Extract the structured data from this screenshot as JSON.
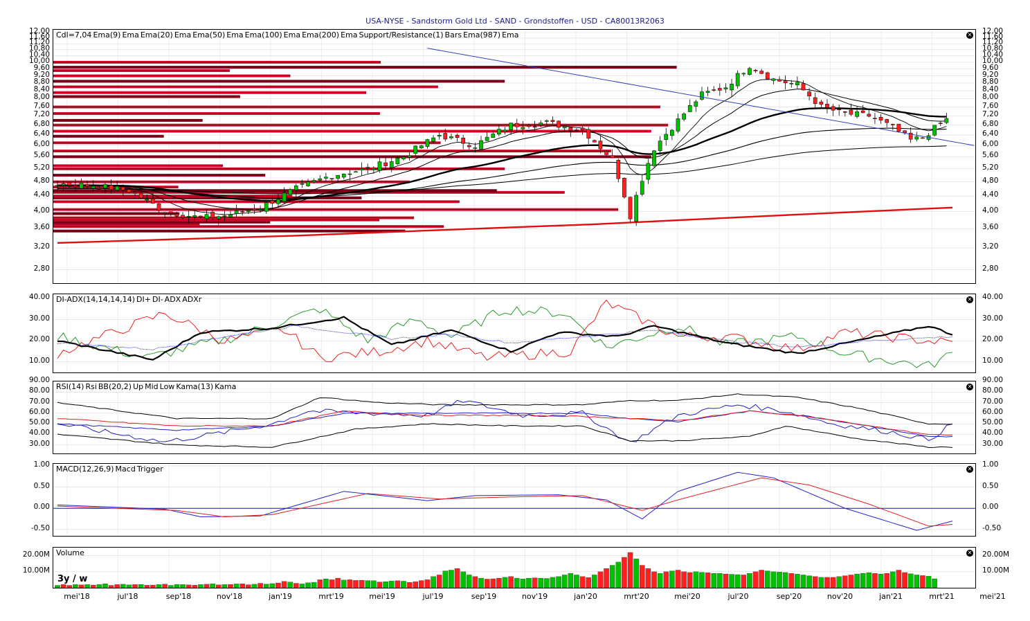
{
  "title": "USA-NYSE - Sandstorm Gold Ltd - SAND - Grondstoffen - USD - CA80013R2063",
  "colors": {
    "up": "#00c000",
    "down": "#ff2020",
    "dark_red": "#7a0018",
    "res_red": "#dd1030",
    "ema": "#000000",
    "ema987": "#e01010",
    "trend": "#3040c0",
    "dip": "#2a9a2a",
    "dim": "#ee2020",
    "adx": "#000000",
    "adxr": "#3030e0",
    "rsi": "#2020c0",
    "kama": "#e02020",
    "macd": "#2020d0",
    "trigger": "#e02020"
  },
  "x_labels": [
    "mei'18",
    "jul'18",
    "sep'18",
    "nov'18",
    "jan'19",
    "mrt'19",
    "mei'19",
    "jul'19",
    "sep'19",
    "nov'19",
    "jan'20",
    "mrt'20",
    "mei'20",
    "jul'20",
    "sep'20",
    "nov'20",
    "jan'21",
    "mrt'21",
    "mei'21"
  ],
  "panels": {
    "price": {
      "legend": [
        "Cdl=7,04",
        "Ema(9)",
        "Ema",
        "Ema(20)",
        "Ema",
        "Ema(50)",
        "Ema",
        "Ema(100)",
        "Ema",
        "Ema(200)",
        "Ema",
        "Support/Resistance(1)",
        "Bars",
        "Ema(987)",
        "Ema"
      ],
      "y_ticks": [
        "12,00",
        "11,60",
        "11,20",
        "10,80",
        "10,40",
        "10,00",
        "9,60",
        "9,20",
        "8,80",
        "8,40",
        "8,00",
        "7,60",
        "7,20",
        "6,80",
        "6,40",
        "6,00",
        "5,60",
        "5,20",
        "4,80",
        "4,40",
        "4,00",
        "3,60",
        "3,20",
        "2,80"
      ]
    },
    "adx": {
      "legend": [
        "DI-ADX(14,14,14,14)",
        "DI+",
        "DI-",
        "ADX",
        "ADXr"
      ],
      "y_ticks": [
        "40.00",
        "30.00",
        "20.00",
        "10.00"
      ]
    },
    "rsi": {
      "legend": [
        "RSI(14)",
        "Rsi",
        "BB(20,2)",
        "Up",
        "Mid",
        "Low",
        "Kama(13)",
        "Kama"
      ],
      "y_ticks": [
        "90.00",
        "80.00",
        "70.00",
        "60.00",
        "50.00",
        "40.00",
        "30.00"
      ]
    },
    "macd": {
      "legend": [
        "MACD(12,26,9)",
        "Macd",
        "Trigger"
      ],
      "y_ticks": [
        "1.00",
        "0.50",
        "0.00",
        "-0.50"
      ]
    },
    "volume": {
      "legend": [
        "Volume"
      ],
      "badge": "3y / w",
      "y_ticks": [
        "20.00M",
        "10.00M"
      ]
    }
  },
  "chart_data": [
    {
      "type": "candlestick",
      "title": "USA-NYSE - Sandstorm Gold Ltd - SAND - Grondstoffen - USD - CA80013R2063",
      "x": "weekly, Apr 2018 - Mar 2021",
      "ylim": [
        2.6,
        12.0
      ],
      "y_scale": "log",
      "close_points": [
        [
          0,
          4.75
        ],
        [
          6,
          4.7
        ],
        [
          12,
          4.55
        ],
        [
          18,
          4.0
        ],
        [
          24,
          3.85
        ],
        [
          28,
          3.9
        ],
        [
          34,
          4.1
        ],
        [
          40,
          4.6
        ],
        [
          46,
          5.0
        ],
        [
          52,
          5.2
        ],
        [
          58,
          5.6
        ],
        [
          64,
          6.4
        ],
        [
          70,
          6.0
        ],
        [
          76,
          6.8
        ],
        [
          82,
          6.9
        ],
        [
          88,
          6.6
        ],
        [
          93,
          5.5
        ],
        [
          96,
          3.9
        ],
        [
          100,
          5.9
        ],
        [
          104,
          7.0
        ],
        [
          108,
          8.2
        ],
        [
          112,
          8.6
        ],
        [
          116,
          9.8
        ],
        [
          120,
          9.0
        ],
        [
          124,
          8.7
        ],
        [
          128,
          7.6
        ],
        [
          132,
          7.3
        ],
        [
          136,
          7.2
        ],
        [
          140,
          6.7
        ],
        [
          143,
          6.2
        ],
        [
          145,
          6.3
        ],
        [
          149,
          7.04
        ]
      ],
      "resistance_levels": [
        3.55,
        3.65,
        3.7,
        3.75,
        3.8,
        3.85,
        3.95,
        4.05,
        4.25,
        4.35,
        4.4,
        4.5,
        4.55,
        4.65,
        4.8,
        5.0,
        5.2,
        5.3,
        5.6,
        5.8,
        6.1,
        6.35,
        6.55,
        6.8,
        7.0,
        7.3,
        7.6,
        8.1,
        8.3,
        8.6,
        8.9,
        9.2,
        9.5,
        9.7,
        10.0
      ],
      "trendline": [
        [
          10.9,
          62
        ],
        [
          6.0,
          149
        ]
      ],
      "ema987": [
        [
          3.3,
          0
        ],
        [
          3.45,
          40
        ],
        [
          3.7,
          90
        ],
        [
          4.1,
          150
        ]
      ]
    },
    {
      "type": "line",
      "title": "DI-ADX(14,14,14,14)",
      "ylim": [
        5,
        42
      ],
      "series": [
        {
          "name": "DI+",
          "anchors": [
            [
              0,
              22
            ],
            [
              15,
              12
            ],
            [
              30,
              22
            ],
            [
              44,
              35
            ],
            [
              52,
              20
            ],
            [
              60,
              30
            ],
            [
              66,
              22
            ],
            [
              75,
              35
            ],
            [
              85,
              33
            ],
            [
              92,
              17
            ],
            [
              104,
              27
            ],
            [
              112,
              18
            ],
            [
              124,
              22
            ],
            [
              132,
              14
            ],
            [
              146,
              8
            ],
            [
              150,
              14
            ]
          ]
        },
        {
          "name": "DI-",
          "anchors": [
            [
              0,
              14
            ],
            [
              18,
              33
            ],
            [
              28,
              20
            ],
            [
              38,
              25
            ],
            [
              44,
              12
            ],
            [
              54,
              15
            ],
            [
              62,
              20
            ],
            [
              72,
              12
            ],
            [
              86,
              15
            ],
            [
              92,
              38
            ],
            [
              104,
              22
            ],
            [
              112,
              22
            ],
            [
              124,
              16
            ],
            [
              132,
              24
            ],
            [
              146,
              20
            ],
            [
              150,
              19
            ]
          ]
        },
        {
          "name": "ADX",
          "anchors": [
            [
              0,
              20
            ],
            [
              16,
              11
            ],
            [
              24,
              24
            ],
            [
              36,
              26
            ],
            [
              48,
              31
            ],
            [
              56,
              18
            ],
            [
              66,
              25
            ],
            [
              76,
              15
            ],
            [
              84,
              24
            ],
            [
              94,
              22
            ],
            [
              100,
              27
            ],
            [
              112,
              19
            ],
            [
              124,
              14
            ],
            [
              134,
              20
            ],
            [
              146,
              27
            ],
            [
              150,
              23
            ]
          ]
        },
        {
          "name": "ADXr",
          "anchors": [
            [
              0,
              19
            ],
            [
              16,
              16
            ],
            [
              28,
              22
            ],
            [
              40,
              27
            ],
            [
              56,
              21
            ],
            [
              66,
              23
            ],
            [
              76,
              19
            ],
            [
              88,
              22
            ],
            [
              100,
              25
            ],
            [
              112,
              20
            ],
            [
              124,
              17
            ],
            [
              136,
              20
            ],
            [
              150,
              22
            ]
          ]
        }
      ]
    },
    {
      "type": "line",
      "title": "RSI(14)",
      "ylim": [
        22,
        90
      ],
      "series": [
        {
          "name": "Rsi",
          "anchors": [
            [
              0,
              50
            ],
            [
              18,
              33
            ],
            [
              28,
              42
            ],
            [
              36,
              50
            ],
            [
              42,
              62
            ],
            [
              52,
              60
            ],
            [
              62,
              58
            ],
            [
              68,
              72
            ],
            [
              78,
              58
            ],
            [
              88,
              60
            ],
            [
              96,
              32
            ],
            [
              104,
              58
            ],
            [
              114,
              68
            ],
            [
              122,
              62
            ],
            [
              130,
              50
            ],
            [
              140,
              42
            ],
            [
              146,
              35
            ],
            [
              150,
              50
            ]
          ]
        },
        {
          "name": "Up",
          "anchors": [
            [
              0,
              70
            ],
            [
              20,
              55
            ],
            [
              36,
              55
            ],
            [
              44,
              75
            ],
            [
              54,
              70
            ],
            [
              64,
              68
            ],
            [
              76,
              68
            ],
            [
              88,
              68
            ],
            [
              96,
              72
            ],
            [
              104,
              72
            ],
            [
              114,
              78
            ],
            [
              124,
              75
            ],
            [
              134,
              65
            ],
            [
              146,
              50
            ],
            [
              150,
              50
            ]
          ]
        },
        {
          "name": "Mid",
          "anchors": [
            [
              0,
              50
            ],
            [
              20,
              44
            ],
            [
              36,
              48
            ],
            [
              48,
              60
            ],
            [
              62,
              60
            ],
            [
              76,
              60
            ],
            [
              88,
              60
            ],
            [
              96,
              55
            ],
            [
              104,
              52
            ],
            [
              116,
              62
            ],
            [
              126,
              57
            ],
            [
              136,
              48
            ],
            [
              146,
              38
            ],
            [
              150,
              38
            ]
          ]
        },
        {
          "name": "Low",
          "anchors": [
            [
              0,
              40
            ],
            [
              20,
              30
            ],
            [
              36,
              28
            ],
            [
              50,
              45
            ],
            [
              62,
              50
            ],
            [
              76,
              48
            ],
            [
              88,
              48
            ],
            [
              96,
              34
            ],
            [
              104,
              34
            ],
            [
              116,
              38
            ],
            [
              122,
              48
            ],
            [
              134,
              36
            ],
            [
              146,
              28
            ],
            [
              150,
              28
            ]
          ]
        },
        {
          "name": "Kama",
          "anchors": [
            [
              0,
              55
            ],
            [
              20,
              48
            ],
            [
              36,
              48
            ],
            [
              48,
              62
            ],
            [
              62,
              58
            ],
            [
              76,
              58
            ],
            [
              88,
              57
            ],
            [
              96,
              55
            ],
            [
              104,
              53
            ],
            [
              116,
              62
            ],
            [
              126,
              57
            ],
            [
              136,
              48
            ],
            [
              146,
              40
            ],
            [
              150,
              39
            ]
          ]
        }
      ]
    },
    {
      "type": "line",
      "title": "MACD(12,26,9)",
      "ylim": [
        -0.65,
        1.05
      ],
      "series": [
        {
          "name": "Macd",
          "anchors": [
            [
              0,
              0.08
            ],
            [
              18,
              -0.02
            ],
            [
              24,
              -0.2
            ],
            [
              34,
              -0.18
            ],
            [
              48,
              0.4
            ],
            [
              62,
              0.18
            ],
            [
              70,
              0.3
            ],
            [
              84,
              0.32
            ],
            [
              92,
              0.2
            ],
            [
              98,
              -0.25
            ],
            [
              104,
              0.4
            ],
            [
              114,
              0.85
            ],
            [
              120,
              0.72
            ],
            [
              132,
              0.0
            ],
            [
              144,
              -0.52
            ],
            [
              150,
              -0.3
            ]
          ]
        },
        {
          "name": "Trigger",
          "anchors": [
            [
              0,
              0.05
            ],
            [
              20,
              -0.05
            ],
            [
              28,
              -0.2
            ],
            [
              36,
              -0.15
            ],
            [
              52,
              0.35
            ],
            [
              64,
              0.22
            ],
            [
              76,
              0.27
            ],
            [
              88,
              0.3
            ],
            [
              98,
              -0.05
            ],
            [
              104,
              0.2
            ],
            [
              118,
              0.72
            ],
            [
              126,
              0.55
            ],
            [
              136,
              0.1
            ],
            [
              146,
              -0.42
            ],
            [
              150,
              -0.38
            ]
          ]
        }
      ]
    },
    {
      "type": "bar",
      "title": "Volume",
      "ylim": [
        0,
        25
      ],
      "unit": "M",
      "values": [
        1.5,
        2,
        1.5,
        2,
        1.8,
        2,
        1.7,
        2,
        2.5,
        1.5,
        2,
        2.2,
        1.8,
        2,
        2.1,
        1.6,
        1.7,
        2,
        2.3,
        1.5,
        2,
        2,
        1.8,
        1.6,
        2,
        2.2,
        2.5,
        1.8,
        2,
        2.1,
        2.4,
        2.5,
        1.9,
        2.2,
        2.8,
        2.3,
        2.6,
        3,
        4,
        3.6,
        2.8,
        2.4,
        3.1,
        3.4,
        5,
        5.5,
        5,
        6,
        4.8,
        5,
        4.6,
        4.7,
        4.5,
        4.4,
        3.6,
        3.8,
        4.2,
        4.4,
        4.1,
        3.4,
        3.8,
        4.5,
        5,
        7,
        8,
        10.5,
        11,
        12,
        10,
        8,
        7,
        6,
        5.4,
        5.6,
        6,
        6.5,
        7,
        6,
        5.5,
        6,
        6.2,
        6,
        5.8,
        6.5,
        7,
        8,
        9,
        8,
        7,
        6.4,
        8,
        10,
        12,
        14,
        16,
        19,
        22,
        18,
        14,
        12,
        10,
        9,
        10,
        10.5,
        11,
        10,
        9.5,
        10,
        9.6,
        9.4,
        9,
        9,
        8.6,
        8.4,
        8.2,
        8,
        9,
        10,
        11,
        10.5,
        10,
        9.8,
        9.5,
        9,
        8.5,
        8,
        7.5,
        7,
        6.5,
        6.5,
        6.5,
        7,
        7.5,
        8,
        8.6,
        9,
        9.4,
        9,
        8.6,
        9,
        10,
        11,
        9.5,
        8.7,
        8,
        7.6,
        7.2,
        5.6
      ]
    }
  ]
}
